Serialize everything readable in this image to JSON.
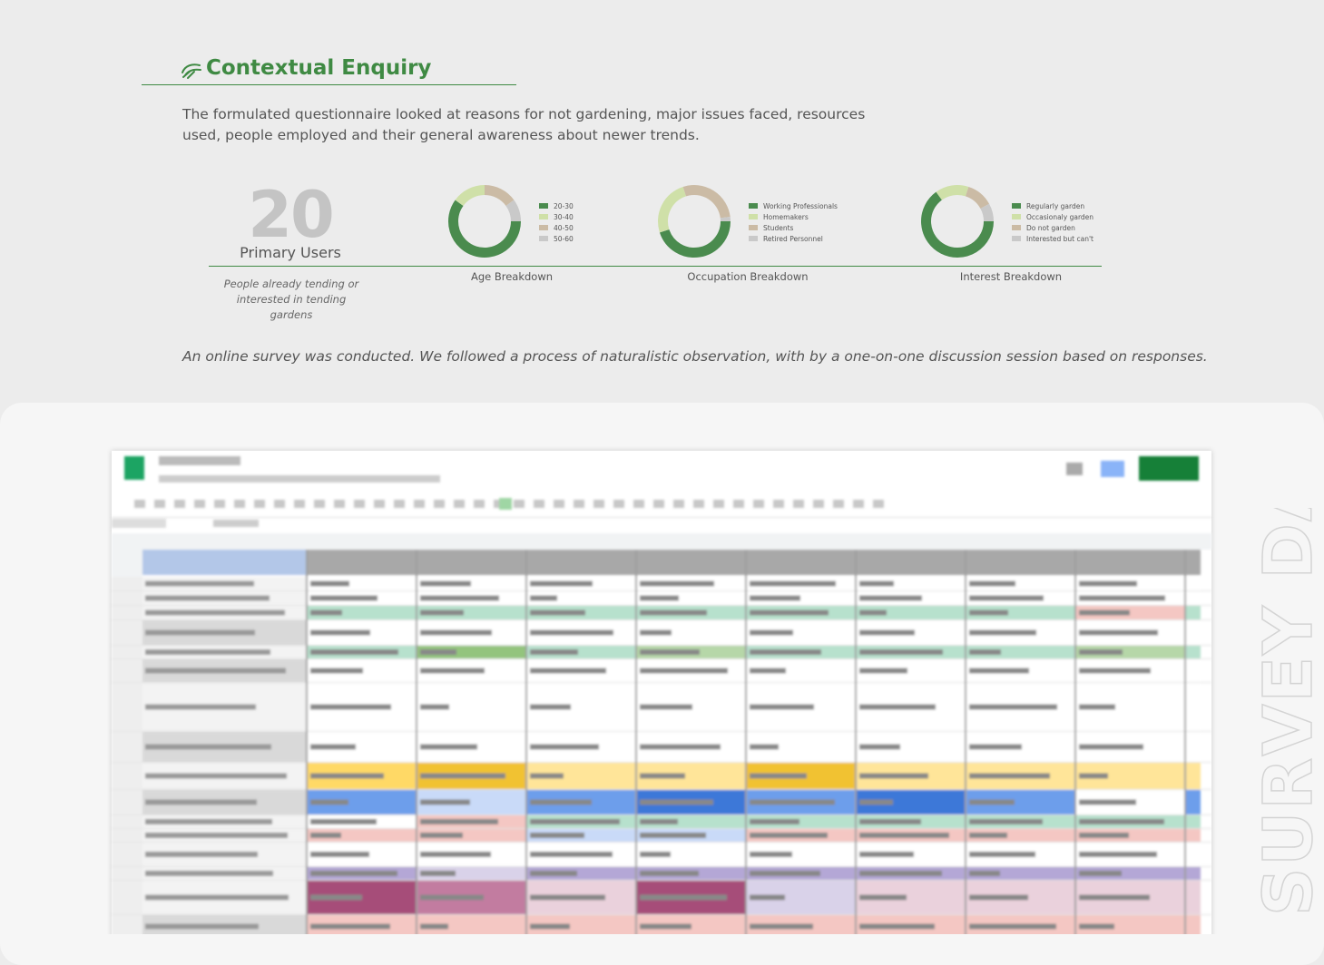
{
  "header": {
    "title": "Contextual Enquiry"
  },
  "intro": "The formulated questionnaire looked at reasons for not gardening, major issues faced, resources used, people employed and their general awareness about newer trends.",
  "stats": {
    "number": 20,
    "label": "Primary Users",
    "note": "People already tending or interested in tending gardens"
  },
  "chart_data": [
    {
      "type": "pie",
      "title": "Age Breakdown",
      "categories": [
        "20-30",
        "30-40",
        "40-50",
        "50-60"
      ],
      "values": [
        60,
        15,
        15,
        10
      ],
      "colors": [
        "#4a8b4e",
        "#cfe0a8",
        "#cbbba5",
        "#c9c9c9"
      ]
    },
    {
      "type": "pie",
      "title": "Occupation Breakdown",
      "categories": [
        "Working Professionals",
        "Homemakers",
        "Students",
        "Retired Personnel"
      ],
      "values": [
        45,
        25,
        28,
        2
      ],
      "colors": [
        "#4a8b4e",
        "#cfe0a8",
        "#cbbba5",
        "#c9c9c9"
      ]
    },
    {
      "type": "pie",
      "title": "Interest Breakdown",
      "categories": [
        "Regularly garden",
        "Occasionaly garden",
        "Do not garden",
        "Interested but can't"
      ],
      "values": [
        65,
        15,
        12,
        8
      ],
      "colors": [
        "#4a8b4e",
        "#cfe0a8",
        "#cbbba5",
        "#c9c9c9"
      ]
    }
  ],
  "footnote": "An online survey was conducted. We followed a process of naturalistic observation, with by a one-on-one discussion session based on responses.",
  "side_label": "SURVEY DATA"
}
